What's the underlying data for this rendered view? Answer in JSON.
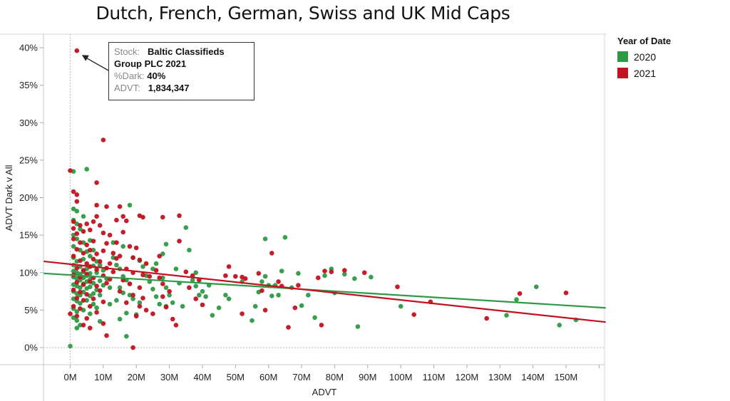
{
  "chart_data": {
    "type": "scatter",
    "title": "Dutch, French, German, Swiss and UK Mid Caps",
    "xlabel": "ADVT",
    "ylabel": "ADVT Dark v All",
    "xlim": [
      -8,
      162
    ],
    "ylim": [
      -2.2,
      42
    ],
    "x_unit": "M",
    "y_unit": "%",
    "x_ticks": [
      "0M",
      "10M",
      "20M",
      "30M",
      "40M",
      "50M",
      "60M",
      "70M",
      "80M",
      "90M",
      "100M",
      "110M",
      "120M",
      "130M",
      "140M",
      "150M"
    ],
    "x_tick_values": [
      0,
      10,
      20,
      30,
      40,
      50,
      60,
      70,
      80,
      90,
      100,
      110,
      120,
      130,
      140,
      150
    ],
    "y_ticks": [
      "0%",
      "5%",
      "10%",
      "15%",
      "20%",
      "25%",
      "30%",
      "35%",
      "40%"
    ],
    "y_tick_values": [
      0,
      5,
      10,
      15,
      20,
      25,
      30,
      35,
      40
    ],
    "grid": false,
    "reference_lines": [
      "x=0",
      "y=0"
    ],
    "legend": {
      "title": "Year of Date",
      "position": "top-right",
      "entries": [
        {
          "label": "2020",
          "color": "#2e9a45"
        },
        {
          "label": "2021",
          "color": "#c3111f"
        }
      ]
    },
    "series": [
      {
        "name": "2020",
        "color": "#2e9a45",
        "trend": {
          "x": [
            -8,
            162
          ],
          "y": [
            9.9,
            5.3
          ]
        },
        "points": [
          [
            0,
            0.2
          ],
          [
            1,
            23.5
          ],
          [
            5,
            23.8
          ],
          [
            1,
            18.5
          ],
          [
            2,
            18.2
          ],
          [
            1,
            17
          ],
          [
            2,
            16.5
          ],
          [
            4,
            17.5
          ],
          [
            3,
            15.8
          ],
          [
            1,
            15
          ],
          [
            2,
            14.5
          ],
          [
            4,
            14
          ],
          [
            6,
            14.3
          ],
          [
            1,
            13.5
          ],
          [
            3,
            13
          ],
          [
            5,
            12.8
          ],
          [
            7,
            13
          ],
          [
            1,
            12
          ],
          [
            2,
            11.5
          ],
          [
            4,
            11.8
          ],
          [
            6,
            12.2
          ],
          [
            8,
            11.5
          ],
          [
            1,
            11
          ],
          [
            3,
            10.8
          ],
          [
            5,
            10.5
          ],
          [
            7,
            10.9
          ],
          [
            9,
            11
          ],
          [
            1,
            10.2
          ],
          [
            2,
            10
          ],
          [
            3,
            9.8
          ],
          [
            4,
            10.1
          ],
          [
            5,
            9.6
          ],
          [
            6,
            9.9
          ],
          [
            8,
            10
          ],
          [
            10,
            10.3
          ],
          [
            1,
            9.4
          ],
          [
            2,
            9.2
          ],
          [
            3,
            9
          ],
          [
            4,
            9.3
          ],
          [
            5,
            8.8
          ],
          [
            6,
            9.1
          ],
          [
            7,
            8.6
          ],
          [
            9,
            8.9
          ],
          [
            11,
            9.2
          ],
          [
            1,
            8.4
          ],
          [
            2,
            8.2
          ],
          [
            3,
            8
          ],
          [
            4,
            8.5
          ],
          [
            5,
            7.9
          ],
          [
            6,
            8.1
          ],
          [
            8,
            7.7
          ],
          [
            10,
            8.3
          ],
          [
            12,
            8
          ],
          [
            1,
            7.5
          ],
          [
            2,
            7.2
          ],
          [
            3,
            7
          ],
          [
            4,
            7.4
          ],
          [
            6,
            6.9
          ],
          [
            7,
            7.2
          ],
          [
            9,
            7
          ],
          [
            1,
            6.5
          ],
          [
            2,
            6.2
          ],
          [
            3,
            5.9
          ],
          [
            5,
            6.3
          ],
          [
            7,
            5.8
          ],
          [
            1,
            5.2
          ],
          [
            2,
            4.8
          ],
          [
            4,
            5
          ],
          [
            6,
            4.5
          ],
          [
            8,
            5.3
          ],
          [
            1,
            4
          ],
          [
            2,
            3.6
          ],
          [
            3,
            3
          ],
          [
            2,
            2.6
          ],
          [
            9,
            3.5
          ],
          [
            15,
            3.8
          ],
          [
            17,
            1.5
          ],
          [
            13,
            12
          ],
          [
            14,
            11
          ],
          [
            15,
            10.5
          ],
          [
            16,
            9.5
          ],
          [
            17,
            9
          ],
          [
            18,
            8.5
          ],
          [
            15,
            8
          ],
          [
            16,
            7.3
          ],
          [
            18,
            7
          ],
          [
            19,
            6.5
          ],
          [
            21,
            6
          ],
          [
            14,
            6.3
          ],
          [
            12,
            5.8
          ],
          [
            17,
            4.6
          ],
          [
            20,
            4.4
          ],
          [
            13,
            14
          ],
          [
            18,
            19
          ],
          [
            16,
            13.5
          ],
          [
            19,
            12
          ],
          [
            21,
            11.6
          ],
          [
            22,
            10.8
          ],
          [
            23,
            9.6
          ],
          [
            24,
            8.8
          ],
          [
            25,
            7.8
          ],
          [
            26,
            6.8
          ],
          [
            27,
            5.8
          ],
          [
            25,
            10.5
          ],
          [
            26,
            11.2
          ],
          [
            28,
            12.5
          ],
          [
            29,
            13.8
          ],
          [
            28,
            9.3
          ],
          [
            29,
            8
          ],
          [
            30,
            7
          ],
          [
            31,
            6
          ],
          [
            29,
            5.5
          ],
          [
            32,
            10.5
          ],
          [
            33,
            8.6
          ],
          [
            35,
            16
          ],
          [
            34,
            5.5
          ],
          [
            36,
            13
          ],
          [
            37,
            9
          ],
          [
            38,
            8.2
          ],
          [
            39,
            7
          ],
          [
            38,
            10
          ],
          [
            40,
            7.5
          ],
          [
            41,
            6.8
          ],
          [
            42,
            8.3
          ],
          [
            43,
            4.3
          ],
          [
            45,
            5.3
          ],
          [
            47,
            7
          ],
          [
            48,
            6.5
          ],
          [
            52,
            8.8
          ],
          [
            55,
            3.6
          ],
          [
            56,
            5.5
          ],
          [
            57,
            7.4
          ],
          [
            58,
            8.8
          ],
          [
            59,
            9.5
          ],
          [
            60,
            8.3
          ],
          [
            61,
            6.9
          ],
          [
            64,
            10.2
          ],
          [
            65,
            14.7
          ],
          [
            62,
            8.3
          ],
          [
            63,
            7
          ],
          [
            67,
            8
          ],
          [
            69,
            9.9
          ],
          [
            59,
            14.5
          ],
          [
            70,
            5.6
          ],
          [
            72,
            7
          ],
          [
            74,
            4
          ],
          [
            77,
            9.6
          ],
          [
            79,
            10.5
          ],
          [
            80,
            7.3
          ],
          [
            83,
            9.8
          ],
          [
            86,
            9.2
          ],
          [
            87,
            2.8
          ],
          [
            91,
            9.4
          ],
          [
            100,
            5.5
          ],
          [
            132,
            4.3
          ],
          [
            135,
            6.4
          ],
          [
            141,
            8.1
          ],
          [
            148,
            3
          ],
          [
            153,
            3.7
          ]
        ]
      },
      {
        "name": "2021",
        "color": "#c3111f",
        "trend": {
          "x": [
            -8,
            162
          ],
          "y": [
            11.5,
            3.4
          ]
        },
        "points": [
          [
            2,
            39.6
          ],
          [
            10,
            27.7
          ],
          [
            0,
            23.6
          ],
          [
            1,
            20.8
          ],
          [
            2,
            20.4
          ],
          [
            2,
            19.5
          ],
          [
            8,
            22
          ],
          [
            8,
            19
          ],
          [
            11,
            18.8
          ],
          [
            8,
            17.5
          ],
          [
            1,
            16.8
          ],
          [
            3,
            16.3
          ],
          [
            5,
            16.5
          ],
          [
            7,
            16.8
          ],
          [
            9,
            16.3
          ],
          [
            1,
            15.9
          ],
          [
            2,
            15.2
          ],
          [
            4,
            15.5
          ],
          [
            6,
            15.7
          ],
          [
            10,
            15.3
          ],
          [
            12,
            15
          ],
          [
            1,
            14.5
          ],
          [
            3,
            14
          ],
          [
            5,
            13.7
          ],
          [
            7,
            14.2
          ],
          [
            11,
            13.9
          ],
          [
            2,
            13.1
          ],
          [
            4,
            12.6
          ],
          [
            6,
            13
          ],
          [
            8,
            12.5
          ],
          [
            10,
            12.9
          ],
          [
            13,
            12.6
          ],
          [
            1,
            12.2
          ],
          [
            3,
            11.6
          ],
          [
            5,
            11.2
          ],
          [
            7,
            11.8
          ],
          [
            9,
            11.5
          ],
          [
            12,
            11.2
          ],
          [
            14,
            11.9
          ],
          [
            2,
            10.6
          ],
          [
            4,
            10.3
          ],
          [
            6,
            10.8
          ],
          [
            8,
            10.4
          ],
          [
            11,
            10.6
          ],
          [
            13,
            10.1
          ],
          [
            1,
            9.7
          ],
          [
            3,
            9.4
          ],
          [
            5,
            9.8
          ],
          [
            7,
            9.3
          ],
          [
            10,
            9.6
          ],
          [
            12,
            9.1
          ],
          [
            2,
            8.7
          ],
          [
            4,
            8.4
          ],
          [
            6,
            8.8
          ],
          [
            8,
            8.2
          ],
          [
            11,
            8.6
          ],
          [
            1,
            7.7
          ],
          [
            3,
            7.4
          ],
          [
            5,
            7.1
          ],
          [
            9,
            7.6
          ],
          [
            2,
            6.6
          ],
          [
            4,
            6.3
          ],
          [
            7,
            6.5
          ],
          [
            10,
            6.1
          ],
          [
            1,
            5.5
          ],
          [
            3,
            5.2
          ],
          [
            6,
            5.5
          ],
          [
            0,
            4.5
          ],
          [
            2,
            4.2
          ],
          [
            5,
            3.9
          ],
          [
            8,
            4.7
          ],
          [
            4,
            3
          ],
          [
            6,
            2.6
          ],
          [
            10,
            3.2
          ],
          [
            11,
            1.6
          ],
          [
            19,
            0
          ],
          [
            14,
            17
          ],
          [
            15,
            18.8
          ],
          [
            16,
            17.5
          ],
          [
            17,
            16.9
          ],
          [
            21,
            17.6
          ],
          [
            22,
            17.4
          ],
          [
            16,
            15.4
          ],
          [
            14,
            14
          ],
          [
            18,
            13.5
          ],
          [
            20,
            13.3
          ],
          [
            15,
            12.2
          ],
          [
            19,
            12
          ],
          [
            21,
            11.7
          ],
          [
            23,
            11.2
          ],
          [
            17,
            10.5
          ],
          [
            19,
            10
          ],
          [
            22,
            9.7
          ],
          [
            24,
            9.5
          ],
          [
            16,
            9
          ],
          [
            18,
            8.5
          ],
          [
            21,
            8
          ],
          [
            15,
            7.5
          ],
          [
            19,
            7
          ],
          [
            22,
            6.6
          ],
          [
            17,
            6
          ],
          [
            21,
            5.5
          ],
          [
            23,
            5
          ],
          [
            20,
            4.2
          ],
          [
            25,
            4.5
          ],
          [
            27,
            12.2
          ],
          [
            26,
            10.3
          ],
          [
            27,
            9.3
          ],
          [
            28,
            8.5
          ],
          [
            30,
            7.5
          ],
          [
            28,
            6.8
          ],
          [
            29,
            5.4
          ],
          [
            31,
            3.8
          ],
          [
            32,
            3
          ],
          [
            28,
            17.4
          ],
          [
            33,
            17.6
          ],
          [
            33,
            14.2
          ],
          [
            35,
            10.1
          ],
          [
            37,
            9.6
          ],
          [
            39,
            9
          ],
          [
            36,
            8
          ],
          [
            38,
            6.5
          ],
          [
            40,
            5.7
          ],
          [
            47,
            9.6
          ],
          [
            48,
            10.8
          ],
          [
            50,
            9.5
          ],
          [
            52,
            9.4
          ],
          [
            52,
            4.5
          ],
          [
            53,
            9.2
          ],
          [
            57,
            9.9
          ],
          [
            58,
            7.6
          ],
          [
            59,
            5
          ],
          [
            61,
            12.6
          ],
          [
            63,
            8.8
          ],
          [
            64,
            8.2
          ],
          [
            66,
            2.7
          ],
          [
            68,
            5.3
          ],
          [
            69,
            8.3
          ],
          [
            75,
            9.3
          ],
          [
            76,
            3
          ],
          [
            77,
            10.2
          ],
          [
            79,
            10.1
          ],
          [
            83,
            10.3
          ],
          [
            89,
            10
          ],
          [
            99,
            8.1
          ],
          [
            104,
            4.4
          ],
          [
            109,
            6.1
          ],
          [
            126,
            3.9
          ],
          [
            136,
            7.2
          ],
          [
            150,
            7.3
          ]
        ]
      }
    ],
    "annotation": {
      "target_point": [
        2,
        39.6
      ],
      "lines": [
        {
          "key": "Stock:",
          "value": "Baltic Classifieds"
        },
        {
          "key": "",
          "value": "Group PLC  2021"
        },
        {
          "key": "%Dark:",
          "value": "40%"
        },
        {
          "key": "ADVT:",
          "value": "1,834,347"
        }
      ]
    }
  }
}
